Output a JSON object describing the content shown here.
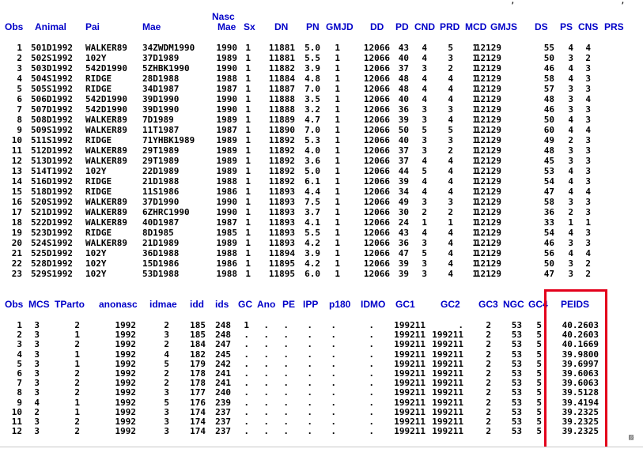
{
  "top_fragment": "                                     ,                    ,",
  "table1": {
    "headers": {
      "nasc_top": "Nasc",
      "obs": "Obs",
      "animal": "Animal",
      "pai": "Pai",
      "mae": "Mae",
      "nascmae": "Mae",
      "sx": "Sx",
      "dn": "DN",
      "pn": "PN",
      "gmjd": "GMJD",
      "dd": "DD",
      "pd": "PD",
      "cnd": "CND",
      "prd": "PRD",
      "mcd": "MCD",
      "gmjs": "GMJS",
      "ds": "DS",
      "ps": "PS",
      "cns": "CNS",
      "prs": "PRS"
    },
    "rows": [
      [
        "1",
        "501D1992",
        "WALKER89",
        "34ZWDM1990",
        "1990",
        "1",
        "11881",
        "5.0",
        "1",
        "12066",
        "43",
        "4",
        "5",
        "1",
        "12129",
        "55",
        "4",
        "4"
      ],
      [
        "2",
        "502S1992",
        "102Y",
        "37D1989",
        "1989",
        "1",
        "11881",
        "5.5",
        "1",
        "12066",
        "40",
        "4",
        "3",
        "1",
        "12129",
        "50",
        "3",
        "2"
      ],
      [
        "3",
        "503D1992",
        "542D1990",
        "5ZHBK1990",
        "1990",
        "1",
        "11882",
        "3.9",
        "1",
        "12066",
        "37",
        "3",
        "2",
        "1",
        "12129",
        "46",
        "4",
        "3"
      ],
      [
        "4",
        "504S1992",
        "RIDGE",
        "28D1988",
        "1988",
        "1",
        "11884",
        "4.8",
        "1",
        "12066",
        "48",
        "4",
        "4",
        "1",
        "12129",
        "58",
        "4",
        "3"
      ],
      [
        "5",
        "505S1992",
        "RIDGE",
        "34D1987",
        "1987",
        "1",
        "11887",
        "7.0",
        "1",
        "12066",
        "48",
        "4",
        "4",
        "1",
        "12129",
        "57",
        "3",
        "3"
      ],
      [
        "6",
        "506D1992",
        "542D1990",
        "39D1990",
        "1990",
        "1",
        "11888",
        "3.5",
        "1",
        "12066",
        "40",
        "4",
        "4",
        "1",
        "12129",
        "48",
        "3",
        "4"
      ],
      [
        "7",
        "507D1992",
        "542D1990",
        "39D1990",
        "1990",
        "1",
        "11888",
        "3.2",
        "1",
        "12066",
        "36",
        "3",
        "3",
        "1",
        "12129",
        "46",
        "3",
        "3"
      ],
      [
        "8",
        "508D1992",
        "WALKER89",
        "7D1989",
        "1989",
        "1",
        "11889",
        "4.7",
        "1",
        "12066",
        "39",
        "3",
        "4",
        "1",
        "12129",
        "50",
        "4",
        "3"
      ],
      [
        "9",
        "509S1992",
        "WALKER89",
        "11T1987",
        "1987",
        "1",
        "11890",
        "7.0",
        "1",
        "12066",
        "50",
        "5",
        "5",
        "1",
        "12129",
        "60",
        "4",
        "4"
      ],
      [
        "10",
        "511S1992",
        "RIDGE",
        "71YHBK1989",
        "1989",
        "1",
        "11892",
        "5.3",
        "1",
        "12066",
        "40",
        "3",
        "3",
        "1",
        "12129",
        "49",
        "2",
        "3"
      ],
      [
        "11",
        "512D1992",
        "WALKER89",
        "29T1989",
        "1989",
        "1",
        "11892",
        "4.0",
        "1",
        "12066",
        "37",
        "3",
        "2",
        "1",
        "12129",
        "48",
        "3",
        "3"
      ],
      [
        "12",
        "513D1992",
        "WALKER89",
        "29T1989",
        "1989",
        "1",
        "11892",
        "3.6",
        "1",
        "12066",
        "37",
        "4",
        "4",
        "1",
        "12129",
        "45",
        "3",
        "3"
      ],
      [
        "13",
        "514T1992",
        "102Y",
        "22D1989",
        "1989",
        "1",
        "11892",
        "5.0",
        "1",
        "12066",
        "44",
        "5",
        "4",
        "1",
        "12129",
        "53",
        "4",
        "3"
      ],
      [
        "14",
        "516D1992",
        "RIDGE",
        "21D1988",
        "1988",
        "1",
        "11892",
        "6.1",
        "1",
        "12066",
        "39",
        "4",
        "4",
        "1",
        "12129",
        "54",
        "4",
        "3"
      ],
      [
        "15",
        "518D1992",
        "RIDGE",
        "11S1986",
        "1986",
        "1",
        "11893",
        "4.4",
        "1",
        "12066",
        "34",
        "4",
        "4",
        "1",
        "12129",
        "47",
        "4",
        "4"
      ],
      [
        "16",
        "520S1992",
        "WALKER89",
        "37D1990",
        "1990",
        "1",
        "11893",
        "7.5",
        "1",
        "12066",
        "49",
        "3",
        "3",
        "1",
        "12129",
        "58",
        "3",
        "3"
      ],
      [
        "17",
        "521D1992",
        "WALKER89",
        "6ZHRC1990",
        "1990",
        "1",
        "11893",
        "3.7",
        "1",
        "12066",
        "30",
        "2",
        "2",
        "1",
        "12129",
        "36",
        "2",
        "3"
      ],
      [
        "18",
        "522D1992",
        "WALKER89",
        "40D1987",
        "1987",
        "1",
        "11893",
        "4.1",
        "1",
        "12066",
        "24",
        "1",
        "1",
        "1",
        "12129",
        "33",
        "1",
        "1"
      ],
      [
        "19",
        "523D1992",
        "RIDGE",
        "8D1985",
        "1985",
        "1",
        "11893",
        "5.5",
        "1",
        "12066",
        "43",
        "4",
        "4",
        "1",
        "12129",
        "54",
        "4",
        "3"
      ],
      [
        "20",
        "524S1992",
        "WALKER89",
        "21D1989",
        "1989",
        "1",
        "11893",
        "4.2",
        "1",
        "12066",
        "36",
        "3",
        "4",
        "1",
        "12129",
        "46",
        "3",
        "3"
      ],
      [
        "21",
        "525D1992",
        "102Y",
        "36D1988",
        "1988",
        "1",
        "11894",
        "3.9",
        "1",
        "12066",
        "47",
        "5",
        "4",
        "1",
        "12129",
        "56",
        "4",
        "4"
      ],
      [
        "22",
        "528D1992",
        "102Y",
        "15D1986",
        "1986",
        "1",
        "11895",
        "4.2",
        "1",
        "12066",
        "39",
        "3",
        "4",
        "1",
        "12129",
        "50",
        "3",
        "2"
      ],
      [
        "23",
        "529S1992",
        "102Y",
        "53D1988",
        "1988",
        "1",
        "11895",
        "6.0",
        "1",
        "12066",
        "39",
        "3",
        "4",
        "1",
        "12129",
        "47",
        "3",
        "2"
      ]
    ]
  },
  "table2": {
    "headers": {
      "obs": "Obs",
      "mcs": "MCS",
      "tparto": "TParto",
      "anonasc": "anonasc",
      "idmae": "idmae",
      "idd": "idd",
      "ids": "ids",
      "gc": "GC",
      "ano": "Ano",
      "pe": "PE",
      "ipp": "IPP",
      "p180": "p180",
      "idmo": "IDMO",
      "gc1": "GC1",
      "gc2": "GC2",
      "gc3": "GC3",
      "ngc": "NGC",
      "gc_trunc": "GC4",
      "peids": "PEIDS"
    },
    "rows": [
      [
        "1",
        "3",
        "2",
        "1992",
        "2",
        "185",
        "248",
        "1",
        ".",
        ".",
        ".",
        ".",
        ".",
        "199211",
        ".",
        "2",
        "53",
        "5",
        "40.2603"
      ],
      [
        "2",
        "3",
        "1",
        "1992",
        "3",
        "185",
        "248",
        ".",
        ".",
        ".",
        ".",
        ".",
        ".",
        "199211",
        "199211",
        "2",
        "53",
        "5",
        "40.2603"
      ],
      [
        "3",
        "3",
        "2",
        "1992",
        "2",
        "184",
        "247",
        ".",
        ".",
        ".",
        ".",
        ".",
        ".",
        "199211",
        "199211",
        "2",
        "53",
        "5",
        "40.1669"
      ],
      [
        "4",
        "3",
        "1",
        "1992",
        "4",
        "182",
        "245",
        ".",
        ".",
        ".",
        ".",
        ".",
        ".",
        "199211",
        "199211",
        "2",
        "53",
        "5",
        "39.9800"
      ],
      [
        "5",
        "3",
        "1",
        "1992",
        "5",
        "179",
        "242",
        ".",
        ".",
        ".",
        ".",
        ".",
        ".",
        "199211",
        "199211",
        "2",
        "53",
        "5",
        "39.6997"
      ],
      [
        "6",
        "3",
        "2",
        "1992",
        "2",
        "178",
        "241",
        ".",
        ".",
        ".",
        ".",
        ".",
        ".",
        "199211",
        "199211",
        "2",
        "53",
        "5",
        "39.6063"
      ],
      [
        "7",
        "3",
        "2",
        "1992",
        "2",
        "178",
        "241",
        ".",
        ".",
        ".",
        ".",
        ".",
        ".",
        "199211",
        "199211",
        "2",
        "53",
        "5",
        "39.6063"
      ],
      [
        "8",
        "3",
        "2",
        "1992",
        "3",
        "177",
        "240",
        ".",
        ".",
        ".",
        ".",
        ".",
        ".",
        "199211",
        "199211",
        "2",
        "53",
        "5",
        "39.5128"
      ],
      [
        "9",
        "4",
        "1",
        "1992",
        "5",
        "176",
        "239",
        ".",
        ".",
        ".",
        ".",
        ".",
        ".",
        "199211",
        "199211",
        "2",
        "53",
        "5",
        "39.4194"
      ],
      [
        "10",
        "2",
        "1",
        "1992",
        "3",
        "174",
        "237",
        ".",
        ".",
        ".",
        ".",
        ".",
        ".",
        "199211",
        "199211",
        "2",
        "53",
        "5",
        "39.2325"
      ],
      [
        "11",
        "3",
        "2",
        "1992",
        "3",
        "174",
        "237",
        ".",
        ".",
        ".",
        ".",
        ".",
        ".",
        "199211",
        "199211",
        "2",
        "53",
        "5",
        "39.2325"
      ],
      [
        "12",
        "3",
        "2",
        "1992",
        "3",
        "174",
        "237",
        ".",
        ".",
        ".",
        ".",
        ".",
        ".",
        "199211",
        "199211",
        "2",
        "53",
        "5",
        "39.2325"
      ]
    ]
  },
  "highlight_color": "#e3001b",
  "header_color": "#0000c8",
  "grip_glyph": "▨"
}
